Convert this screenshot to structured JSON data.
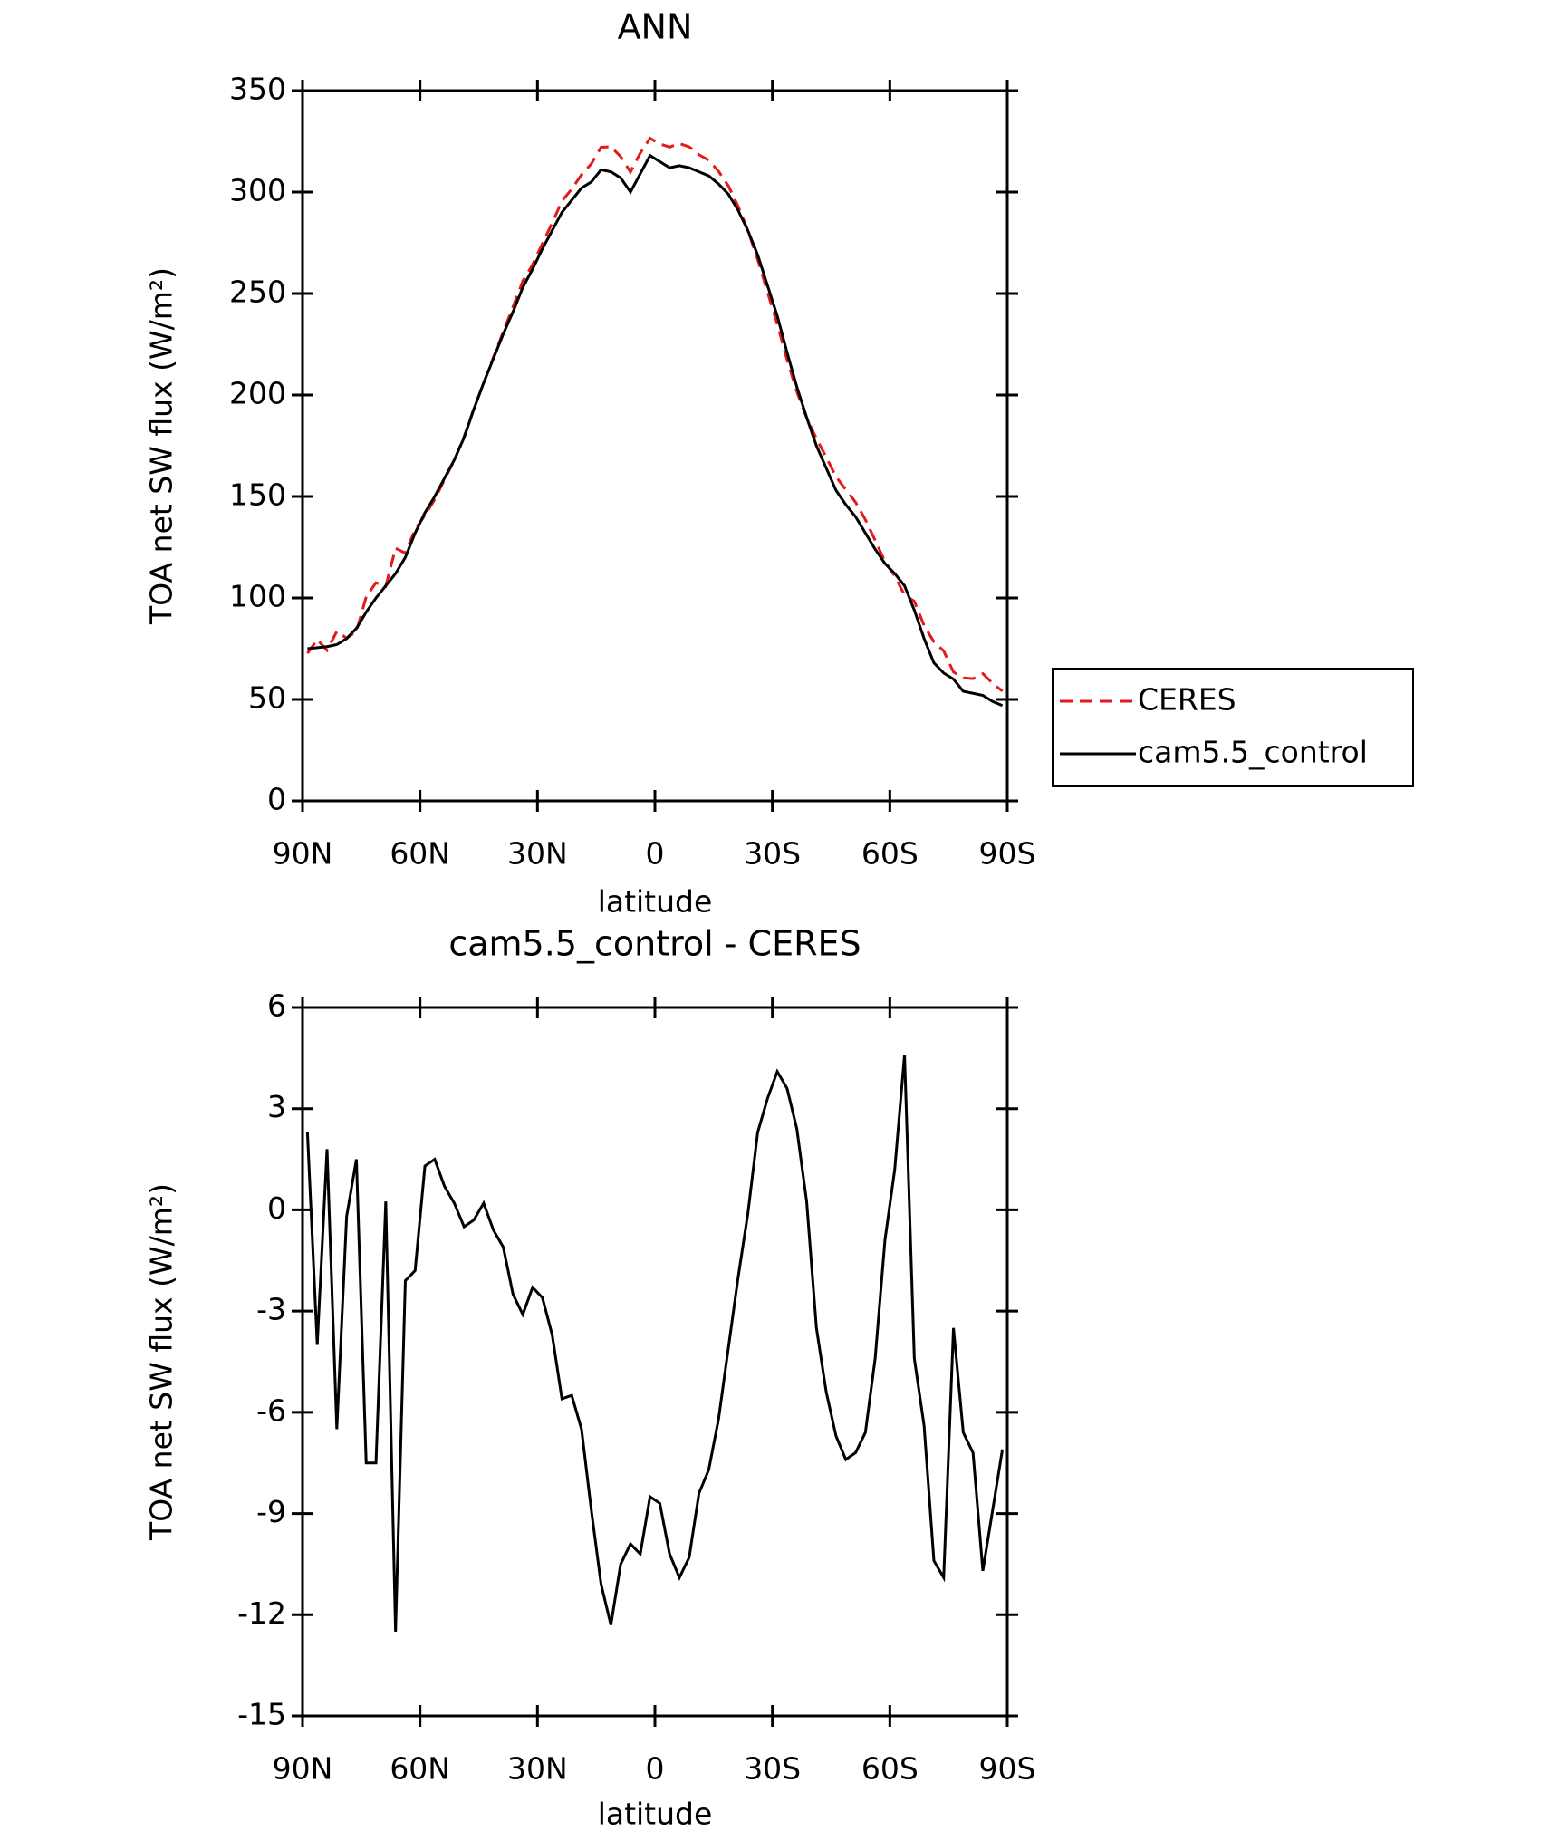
{
  "chart_data": [
    {
      "type": "line",
      "title": "ANN",
      "x_label": "latitude",
      "y_label": "TOA net SW flux (W/m²)",
      "x": [
        88.75,
        86.25,
        83.75,
        81.25,
        78.75,
        76.25,
        73.75,
        71.25,
        68.75,
        66.25,
        63.75,
        61.25,
        58.75,
        56.25,
        53.75,
        51.25,
        48.75,
        46.25,
        43.75,
        41.25,
        38.75,
        36.25,
        33.75,
        31.25,
        28.75,
        26.25,
        23.75,
        21.25,
        18.75,
        16.25,
        13.75,
        11.25,
        8.75,
        6.25,
        3.75,
        1.25,
        -1.25,
        -3.75,
        -6.25,
        -8.75,
        -11.25,
        -13.75,
        -16.25,
        -18.75,
        -21.25,
        -23.75,
        -26.25,
        -28.75,
        -31.25,
        -33.75,
        -36.25,
        -38.75,
        -41.25,
        -43.75,
        -46.25,
        -48.75,
        -51.25,
        -53.75,
        -56.25,
        -58.75,
        -61.25,
        -63.75,
        -66.25,
        -68.75,
        -71.25,
        -73.75,
        -76.25,
        -78.75,
        -81.25,
        -83.75,
        -86.25,
        -88.75
      ],
      "xlim": [
        90,
        -90
      ],
      "xticks": [
        {
          "value": 90,
          "label": "90N"
        },
        {
          "value": 60,
          "label": "60N"
        },
        {
          "value": 30,
          "label": "30N"
        },
        0,
        {
          "value": -30,
          "label": "30S"
        },
        {
          "value": -60,
          "label": "60S"
        },
        {
          "value": -90,
          "label": "90S"
        }
      ],
      "ylim": [
        0,
        350
      ],
      "yticks": [
        0,
        50,
        100,
        150,
        200,
        250,
        300,
        350
      ],
      "legend_position": "right",
      "series": [
        {
          "name": "CERES",
          "color": "#e31a1c",
          "line_style": "dashed",
          "values": [
            72.7,
            79.5,
            74.2,
            83.5,
            80.2,
            83.5,
            100.5,
            107.5,
            105.8,
            124.5,
            122.1,
            133.8,
            140.7,
            148.5,
            158.3,
            167.8,
            179.5,
            193.3,
            205.8,
            218.6,
            231.1,
            243.5,
            256.1,
            264.3,
            274.6,
            284.7,
            295.6,
            301.5,
            308.5,
            313.9,
            322.1,
            322.3,
            317.5,
            309.9,
            319.2,
            326.5,
            323.7,
            322.2,
            323.9,
            322.3,
            318.4,
            315.7,
            310.2,
            303.1,
            293.0,
            281.1,
            266.7,
            250.7,
            234.9,
            217.4,
            201.6,
            188.8,
            178.5,
            169.4,
            159.7,
            153.4,
            147.2,
            138.6,
            128.4,
            117.9,
            110.8,
            101.4,
            98.4,
            86.4,
            78.4,
            73.9,
            63.5,
            60.6,
            60.2,
            62.7,
            57.9,
            54.1
          ]
        },
        {
          "name": "cam5.5_control",
          "color": "#000000",
          "line_style": "solid",
          "values": [
            75,
            75.5,
            76,
            77,
            80,
            85,
            93,
            100,
            106,
            112,
            120,
            132,
            142,
            150,
            159,
            168,
            179,
            193,
            206,
            218,
            230,
            241,
            253,
            262,
            272,
            281,
            290,
            296,
            302,
            305,
            311,
            310,
            307,
            300,
            309,
            318,
            315,
            312,
            313,
            312,
            310,
            308,
            304,
            299,
            291,
            281,
            269,
            254,
            239,
            221,
            204,
            189,
            175,
            164,
            153,
            146,
            140,
            132,
            124,
            117,
            112,
            106,
            94,
            80,
            68,
            63,
            60,
            54,
            53,
            52,
            49,
            47
          ]
        }
      ]
    },
    {
      "type": "line",
      "title": "cam5.5_control - CERES",
      "x_label": "latitude",
      "y_label": "TOA net SW flux (W/m²)",
      "x": [
        88.75,
        86.25,
        83.75,
        81.25,
        78.75,
        76.25,
        73.75,
        71.25,
        68.75,
        66.25,
        63.75,
        61.25,
        58.75,
        56.25,
        53.75,
        51.25,
        48.75,
        46.25,
        43.75,
        41.25,
        38.75,
        36.25,
        33.75,
        31.25,
        28.75,
        26.25,
        23.75,
        21.25,
        18.75,
        16.25,
        13.75,
        11.25,
        8.75,
        6.25,
        3.75,
        1.25,
        -1.25,
        -3.75,
        -6.25,
        -8.75,
        -11.25,
        -13.75,
        -16.25,
        -18.75,
        -21.25,
        -23.75,
        -26.25,
        -28.75,
        -31.25,
        -33.75,
        -36.25,
        -38.75,
        -41.25,
        -43.75,
        -46.25,
        -48.75,
        -51.25,
        -53.75,
        -56.25,
        -58.75,
        -61.25,
        -63.75,
        -66.25,
        -68.75,
        -71.25,
        -73.75,
        -76.25,
        -78.75,
        -81.25,
        -83.75,
        -86.25,
        -88.75
      ],
      "xlim": [
        90,
        -90
      ],
      "xticks": [
        {
          "value": 90,
          "label": "90N"
        },
        {
          "value": 60,
          "label": "60N"
        },
        {
          "value": 30,
          "label": "30N"
        },
        0,
        {
          "value": -30,
          "label": "30S"
        },
        {
          "value": -60,
          "label": "60S"
        },
        {
          "value": -90,
          "label": "90S"
        }
      ],
      "ylim": [
        -15,
        6
      ],
      "yticks": [
        -15,
        -12,
        -9,
        -6,
        -3,
        0,
        3,
        6
      ],
      "series": [
        {
          "name": "cam5.5_control - CERES",
          "color": "#000000",
          "line_style": "solid",
          "values": [
            2.3,
            -4.0,
            1.8,
            -6.5,
            -0.2,
            1.5,
            -7.5,
            -7.5,
            0.25,
            -12.5,
            -2.1,
            -1.8,
            1.3,
            1.5,
            0.7,
            0.2,
            -0.5,
            -0.3,
            0.2,
            -0.6,
            -1.1,
            -2.5,
            -3.1,
            -2.3,
            -2.6,
            -3.7,
            -5.6,
            -5.5,
            -6.5,
            -8.9,
            -11.1,
            -12.3,
            -10.5,
            -9.9,
            -10.2,
            -8.5,
            -8.7,
            -10.2,
            -10.9,
            -10.3,
            -8.4,
            -7.7,
            -6.2,
            -4.1,
            -2.0,
            -0.1,
            2.3,
            3.3,
            4.1,
            3.6,
            2.4,
            0.25,
            -3.5,
            -5.4,
            -6.7,
            -7.4,
            -7.2,
            -6.6,
            -4.4,
            -0.9,
            1.2,
            4.6,
            -4.4,
            -6.4,
            -10.4,
            -10.9,
            -3.5,
            -6.6,
            -7.2,
            -10.7,
            -8.9,
            -7.1
          ]
        }
      ]
    }
  ]
}
